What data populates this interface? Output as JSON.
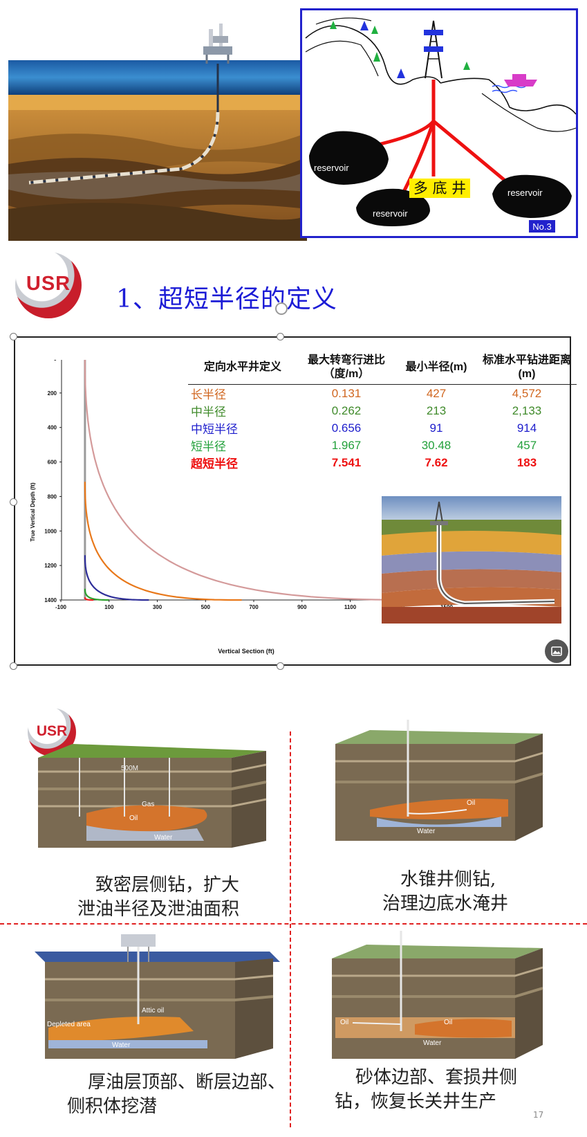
{
  "slide": {
    "heading": "1、超短半径的定义",
    "page_number": "17",
    "logo_text": "USR"
  },
  "top_right_diagram": {
    "center_label": "多 底 井",
    "reservoir_label": "reservoir",
    "slide_tag": "No.3"
  },
  "definition_table": {
    "headers": [
      "定向水平井定义",
      "最大转弯行进比（度/m）",
      "最小半径(m)",
      "标准水平钻进距离(m)"
    ],
    "header_lines": [
      [
        "定向水平井定义"
      ],
      [
        "最大转弯行进比",
        "（度/m）"
      ],
      [
        "最小半径(m)"
      ],
      [
        "标准水平钻进距离",
        "(m)"
      ]
    ],
    "rows": [
      {
        "name": "长半径",
        "rate": "0.131",
        "radius": "427",
        "distance": "4,572",
        "color": "#d0661f",
        "bold": false
      },
      {
        "name": "中半径",
        "rate": "0.262",
        "radius": "213",
        "distance": "2,133",
        "color": "#3f8a2a",
        "bold": false
      },
      {
        "name": "中短半径",
        "rate": "0.656",
        "radius": "91",
        "distance": "914",
        "color": "#1d1dcc",
        "bold": false
      },
      {
        "name": "短半径",
        "rate": "1.967",
        "radius": "30.48",
        "distance": "457",
        "color": "#22a03a",
        "bold": false
      },
      {
        "name": "超短半径",
        "rate": "7.541",
        "radius": "7.62",
        "distance": "183",
        "color": "#ee1111",
        "bold": true
      }
    ]
  },
  "chart_data": {
    "type": "line",
    "title": "",
    "xlabel": "Vertical Section (ft)",
    "ylabel": "True Vertical Depth (ft)",
    "xlim": [
      -100,
      1500
    ],
    "ylim": [
      1400,
      0
    ],
    "x_ticks": [
      "-100",
      "100",
      "300",
      "500",
      "700",
      "900",
      "1100",
      "1300",
      "1500"
    ],
    "x_tick_values": [
      -100,
      100,
      300,
      500,
      700,
      900,
      1100,
      1300,
      1500
    ],
    "y_ticks": [
      "0",
      "200",
      "400",
      "600",
      "800",
      "1000",
      "1200",
      "1400"
    ],
    "y_tick_values": [
      0,
      200,
      400,
      600,
      800,
      1000,
      1200,
      1400
    ],
    "series": [
      {
        "color": "#d49a9a",
        "kickoff_depth": 0,
        "end_x": 1400
      },
      {
        "color": "#e8781a",
        "kickoff_depth": 715,
        "end_x": 650
      },
      {
        "color": "#2e2e99",
        "kickoff_depth": 1140,
        "end_x": 265
      },
      {
        "color": "#2ea02e",
        "kickoff_depth": 1335,
        "end_x": 100
      },
      {
        "color": "#ee2020",
        "kickoff_depth": 1385,
        "end_x": 35
      }
    ]
  },
  "captions": {
    "tl": [
      "致密层侧钻，扩大",
      "泄油半径及泄油面积"
    ],
    "tr": [
      "水锥井侧钻,",
      "治理边底水淹井"
    ],
    "bl": [
      "厚油层顶部、断层边部、",
      "侧积体挖潜"
    ],
    "br": [
      "砂体边部、套损井侧",
      "钻，恢复长关井生产"
    ]
  },
  "block_labels": {
    "b1_depth": "500M",
    "b1_gas": "Gas",
    "b1_oil": "Oil",
    "b1_water": "Water",
    "b2_oil": "Oil",
    "b2_water": "Water",
    "b3_attic": "Attic oil",
    "b3_depleted": "Depleted area",
    "b3_water": "Water",
    "b4_oil_left": "Oil",
    "b4_oil_right": "Oil",
    "b4_water": "Water"
  }
}
